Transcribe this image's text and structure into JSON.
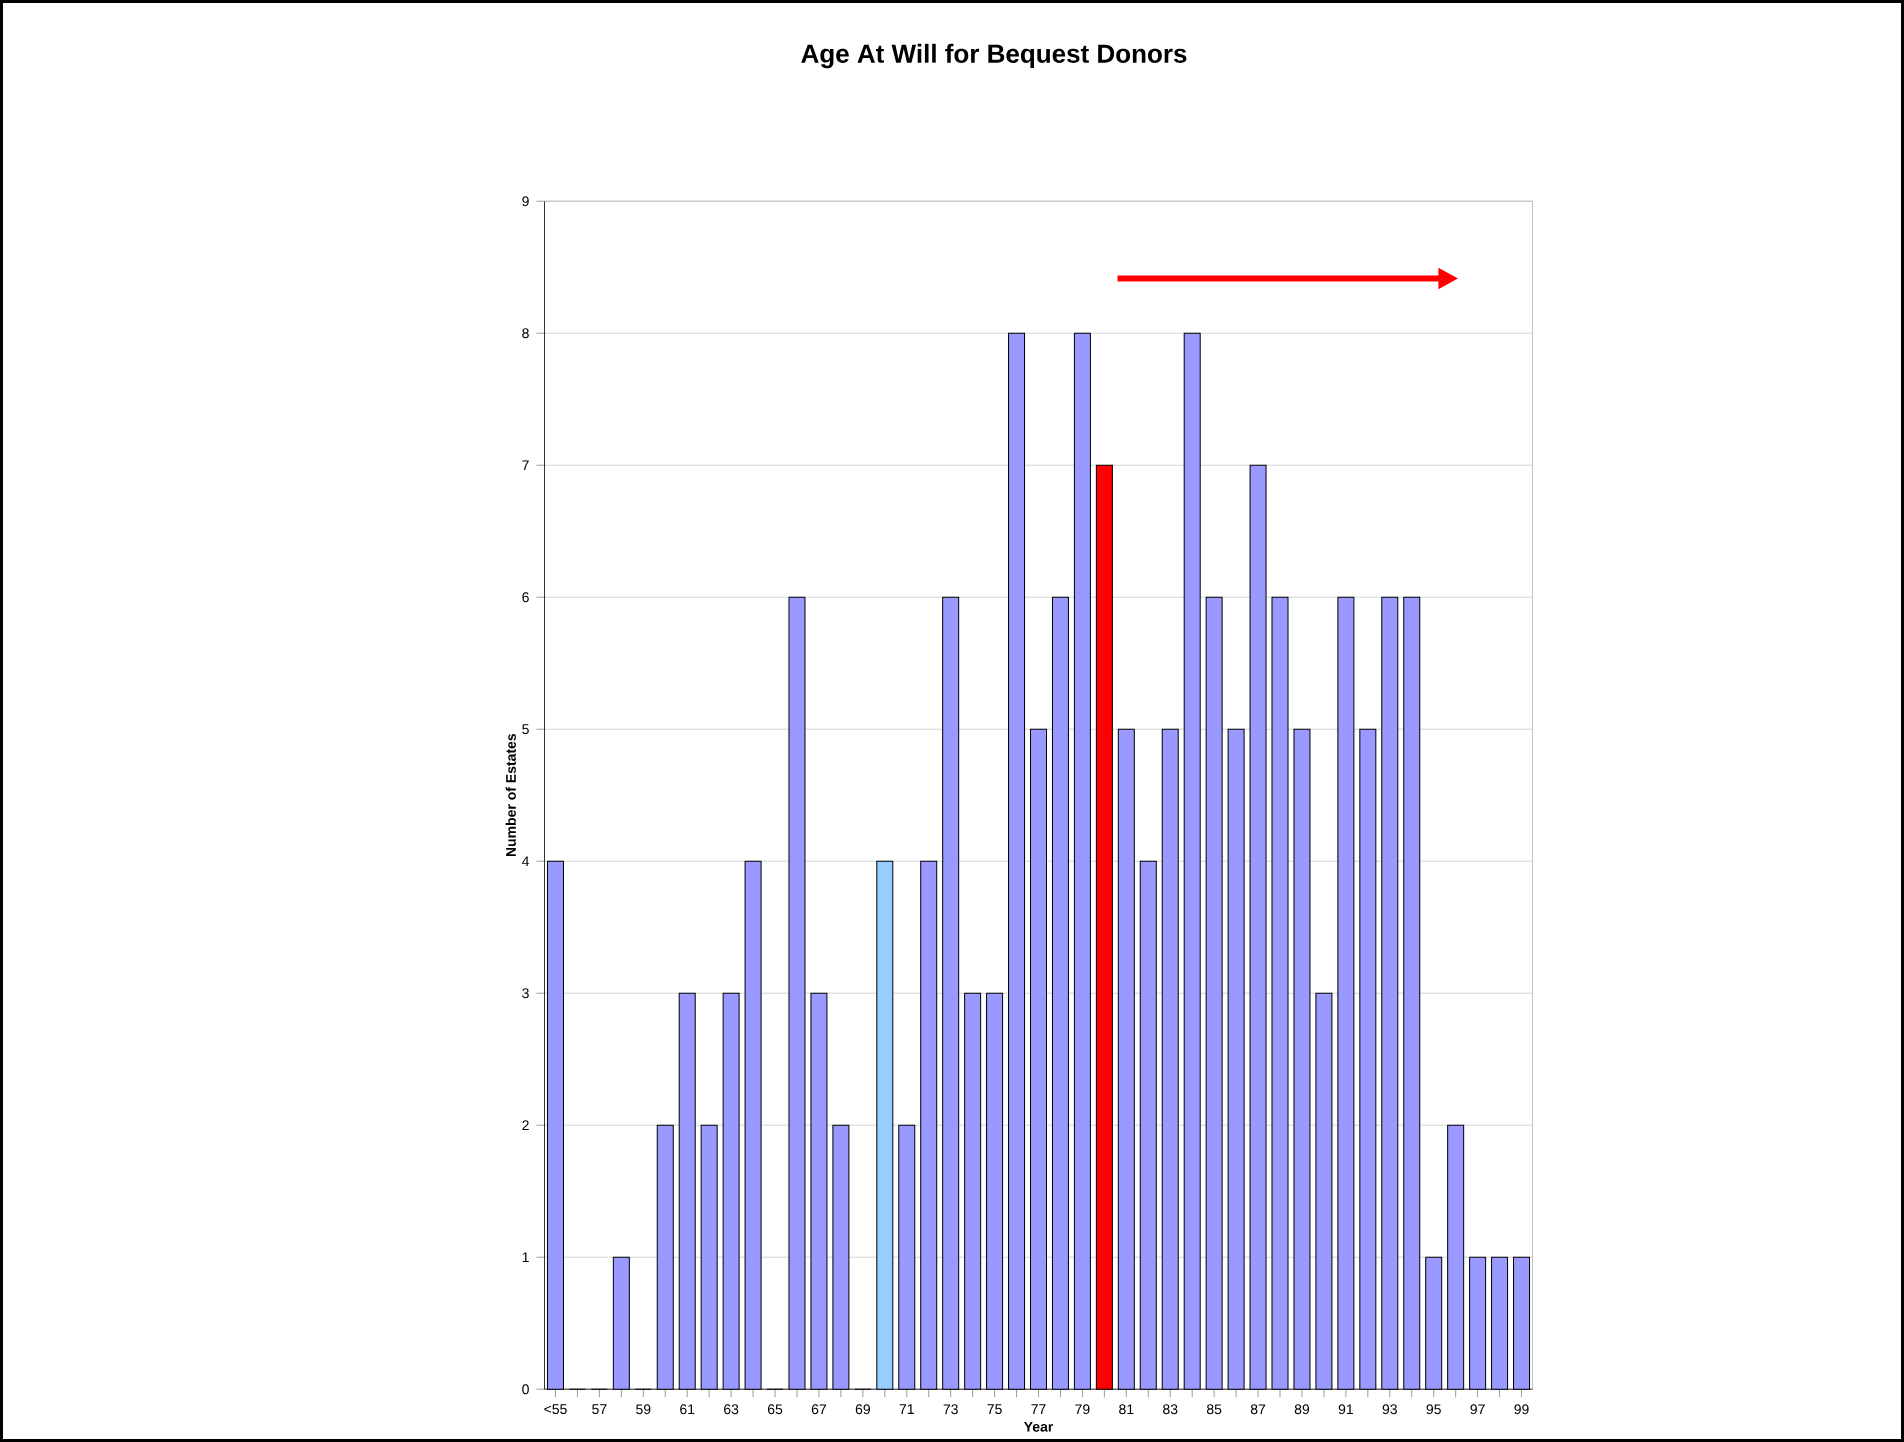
{
  "chart_data": {
    "type": "bar",
    "title": "Age At Will for Bequest Donors",
    "xlabel": "Year",
    "ylabel": "Number of Estates",
    "categories": [
      "<55",
      null,
      "57",
      null,
      "59",
      null,
      "61",
      null,
      "63",
      null,
      "65",
      null,
      "67",
      null,
      "69",
      null,
      "71",
      null,
      "73",
      null,
      "75",
      null,
      "77",
      null,
      "79",
      null,
      "81",
      null,
      "83",
      null,
      "85",
      null,
      "87",
      null,
      "89",
      null,
      "91",
      null,
      "93",
      null,
      "95",
      null,
      "97",
      null,
      "99"
    ],
    "values": [
      4,
      0,
      0,
      1,
      0,
      2,
      3,
      2,
      3,
      4,
      0,
      6,
      3,
      2,
      0,
      4,
      2,
      4,
      6,
      3,
      3,
      8,
      5,
      6,
      8,
      7,
      5,
      4,
      5,
      8,
      6,
      5,
      7,
      6,
      5,
      3,
      6,
      5,
      6,
      6,
      1,
      2,
      1,
      1,
      1
    ],
    "colors": [
      "#9999ff",
      "#9999ff",
      "#9999ff",
      "#9999ff",
      "#9999ff",
      "#9999ff",
      "#9999ff",
      "#9999ff",
      "#9999ff",
      "#9999ff",
      "#9999ff",
      "#9999ff",
      "#9999ff",
      "#9999ff",
      "#9999ff",
      "#99ccff",
      "#9999ff",
      "#9999ff",
      "#9999ff",
      "#9999ff",
      "#9999ff",
      "#9999ff",
      "#9999ff",
      "#9999ff",
      "#9999ff",
      "#ff0000",
      "#9999ff",
      "#9999ff",
      "#9999ff",
      "#9999ff",
      "#9999ff",
      "#9999ff",
      "#9999ff",
      "#9999ff",
      "#9999ff",
      "#9999ff",
      "#9999ff",
      "#9999ff",
      "#9999ff",
      "#9999ff",
      "#9999ff",
      "#9999ff",
      "#9999ff",
      "#9999ff",
      "#9999ff"
    ],
    "ylim": [
      0,
      9
    ],
    "yticks": [
      0,
      1,
      2,
      3,
      4,
      5,
      6,
      7,
      8,
      9
    ],
    "grid": "y"
  }
}
